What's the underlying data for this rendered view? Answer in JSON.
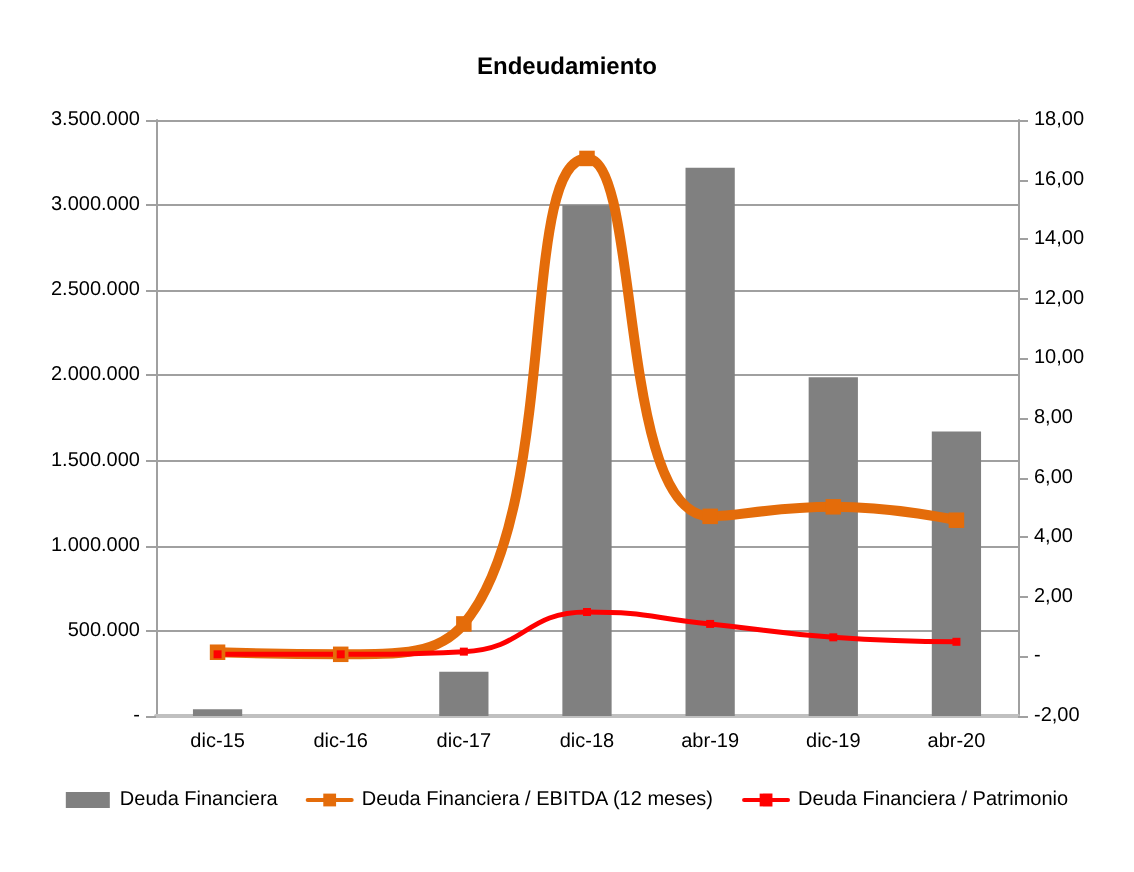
{
  "chart_data": {
    "type": "bar",
    "title": "Endeudamiento",
    "categories": [
      "dic-15",
      "dic-16",
      "dic-17",
      "dic-18",
      "abr-19",
      "dic-19",
      "abr-20"
    ],
    "series": [
      {
        "name": "Deuda Financiera",
        "color": "#808080",
        "values": [
          40000,
          0,
          260000,
          3000000,
          3220000,
          1990000,
          1670000
        ]
      },
      {
        "name": "Deuda Financiera / EBITDA (12 meses)",
        "type": "line",
        "axis": "y2",
        "color": "#e46c0a",
        "values": [
          0.14,
          0.07,
          1.09,
          16.71,
          4.7,
          5.02,
          4.57
        ]
      },
      {
        "name": "Deuda Financiera / Patrimonio",
        "type": "line",
        "axis": "y2",
        "color": "#ff0000",
        "values": [
          0.07,
          0.07,
          0.16,
          1.49,
          1.09,
          0.64,
          0.49
        ]
      }
    ],
    "ylim": [
      0,
      3500000
    ],
    "yticks": [
      {
        "value": 0,
        "label": "-"
      },
      {
        "value": 500000,
        "label": "500.000"
      },
      {
        "value": 1000000,
        "label": "1.000.000"
      },
      {
        "value": 1500000,
        "label": "1.500.000"
      },
      {
        "value": 2000000,
        "label": "2.000.000"
      },
      {
        "value": 2500000,
        "label": "2.500.000"
      },
      {
        "value": 3000000,
        "label": "3.000.000"
      },
      {
        "value": 3500000,
        "label": "3.500.000"
      }
    ],
    "y2lim": [
      -2,
      18
    ],
    "y2ticks": [
      {
        "value": -2,
        "label": "-2,00"
      },
      {
        "value": 0,
        "label": "-"
      },
      {
        "value": 2,
        "label": "2,00"
      },
      {
        "value": 4,
        "label": "4,00"
      },
      {
        "value": 6,
        "label": "6,00"
      },
      {
        "value": 8,
        "label": "8,00"
      },
      {
        "value": 10,
        "label": "10,00"
      },
      {
        "value": 12,
        "label": "12,00"
      },
      {
        "value": 14,
        "label": "14,00"
      },
      {
        "value": 16,
        "label": "16,00"
      },
      {
        "value": 18,
        "label": "18,00"
      }
    ],
    "grid": "y",
    "legend": "bottom",
    "marker": "square",
    "line_style": "solid"
  }
}
